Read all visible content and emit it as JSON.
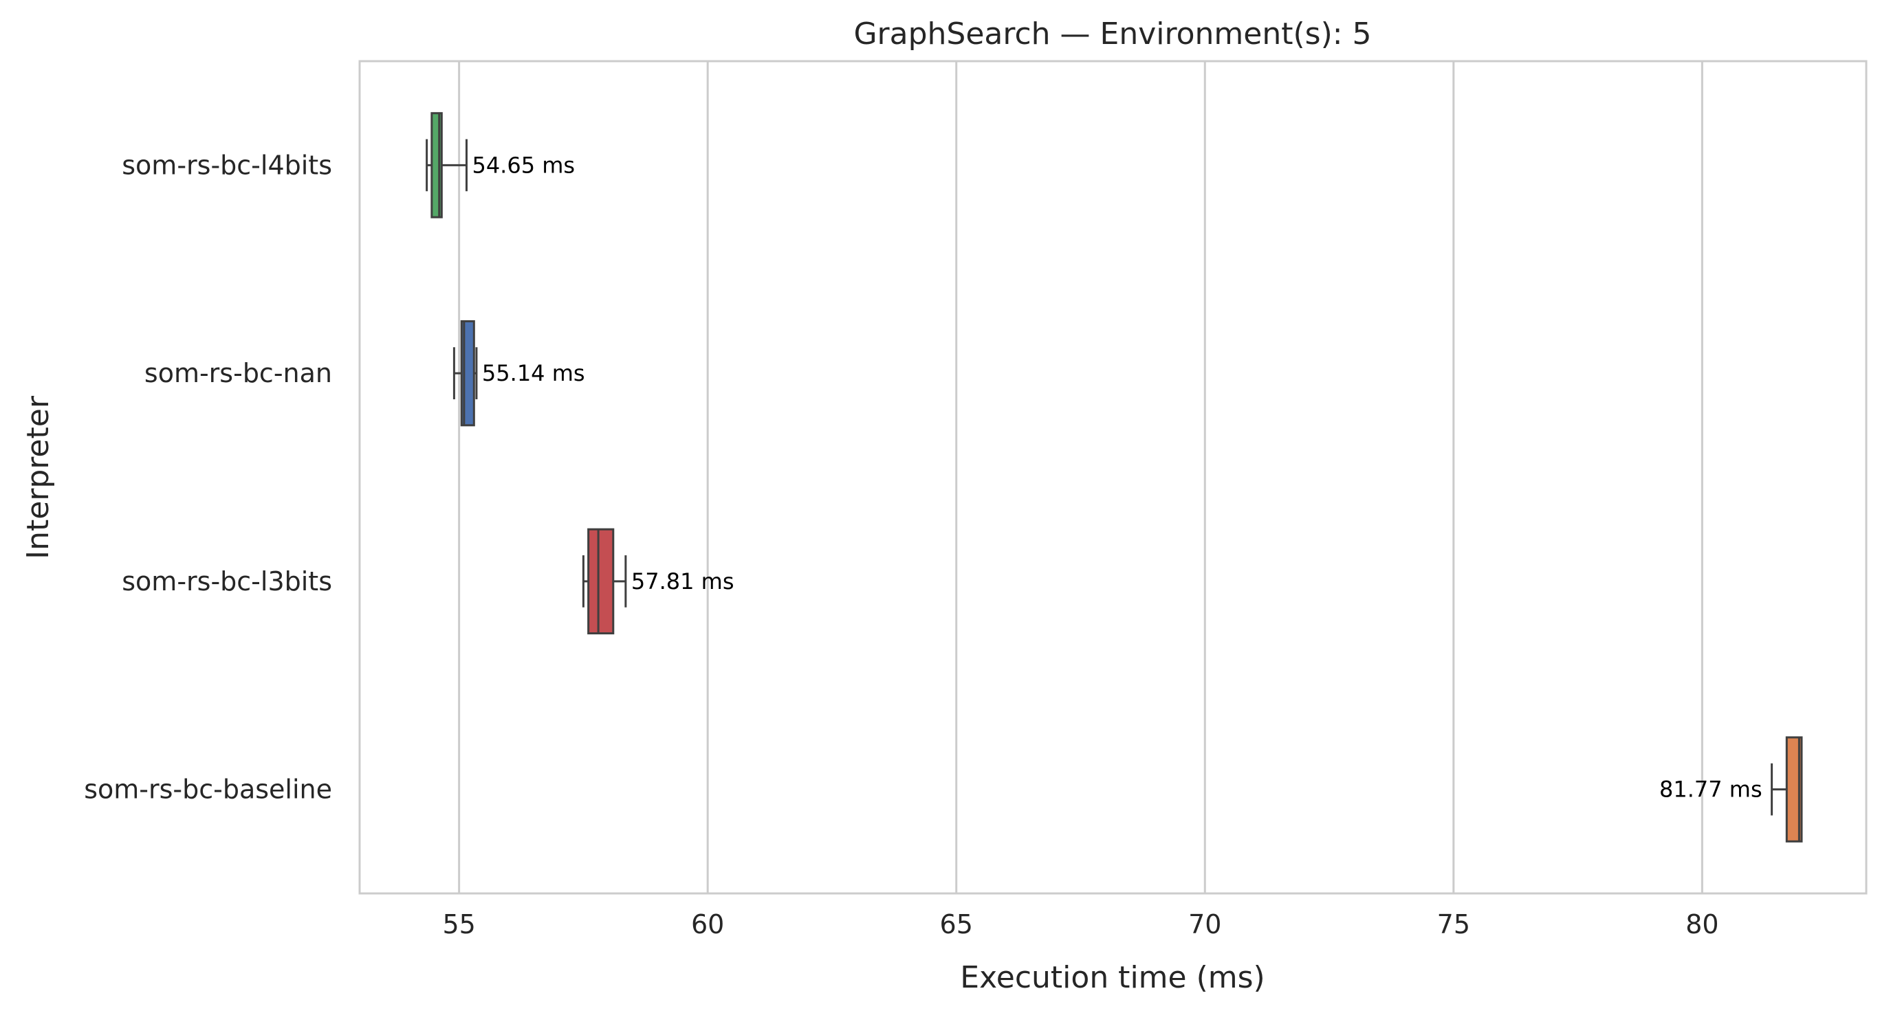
{
  "chart_data": {
    "type": "boxplot-horizontal",
    "title": "GraphSearch — Environment(s): 5",
    "xlabel": "Execution time (ms)",
    "ylabel": "Interpreter",
    "xlim": [
      53,
      83.3
    ],
    "xticks": [
      55,
      60,
      65,
      70,
      75,
      80
    ],
    "xtick_labels": [
      "55",
      "60",
      "65",
      "70",
      "75",
      "80"
    ],
    "grid": "vertical",
    "legend": "none",
    "categories": [
      "som-rs-bc-l4bits",
      "som-rs-bc-nan",
      "som-rs-bc-l3bits",
      "som-rs-bc-baseline"
    ],
    "series": [
      {
        "category": "som-rs-bc-l4bits",
        "color": "#55a868",
        "whisker_low": 54.35,
        "q1": 54.45,
        "median": 54.6,
        "q3": 54.65,
        "whisker_high": 55.15,
        "label": "54.65 ms",
        "label_side": "right"
      },
      {
        "category": "som-rs-bc-nan",
        "color": "#4c72b0",
        "whisker_low": 54.9,
        "q1": 55.05,
        "median": 55.1,
        "q3": 55.3,
        "whisker_high": 55.35,
        "label": "55.14 ms",
        "label_side": "right"
      },
      {
        "category": "som-rs-bc-l3bits",
        "color": "#c44e52",
        "whisker_low": 57.5,
        "q1": 57.6,
        "median": 57.8,
        "q3": 58.1,
        "whisker_high": 58.35,
        "label": "57.81 ms",
        "label_side": "right"
      },
      {
        "category": "som-rs-bc-baseline",
        "color": "#dd8452",
        "whisker_low": 81.4,
        "q1": 81.7,
        "median": 81.95,
        "q3": 82.0,
        "whisker_high": 82.0,
        "label": "81.77 ms",
        "label_side": "left"
      }
    ]
  }
}
